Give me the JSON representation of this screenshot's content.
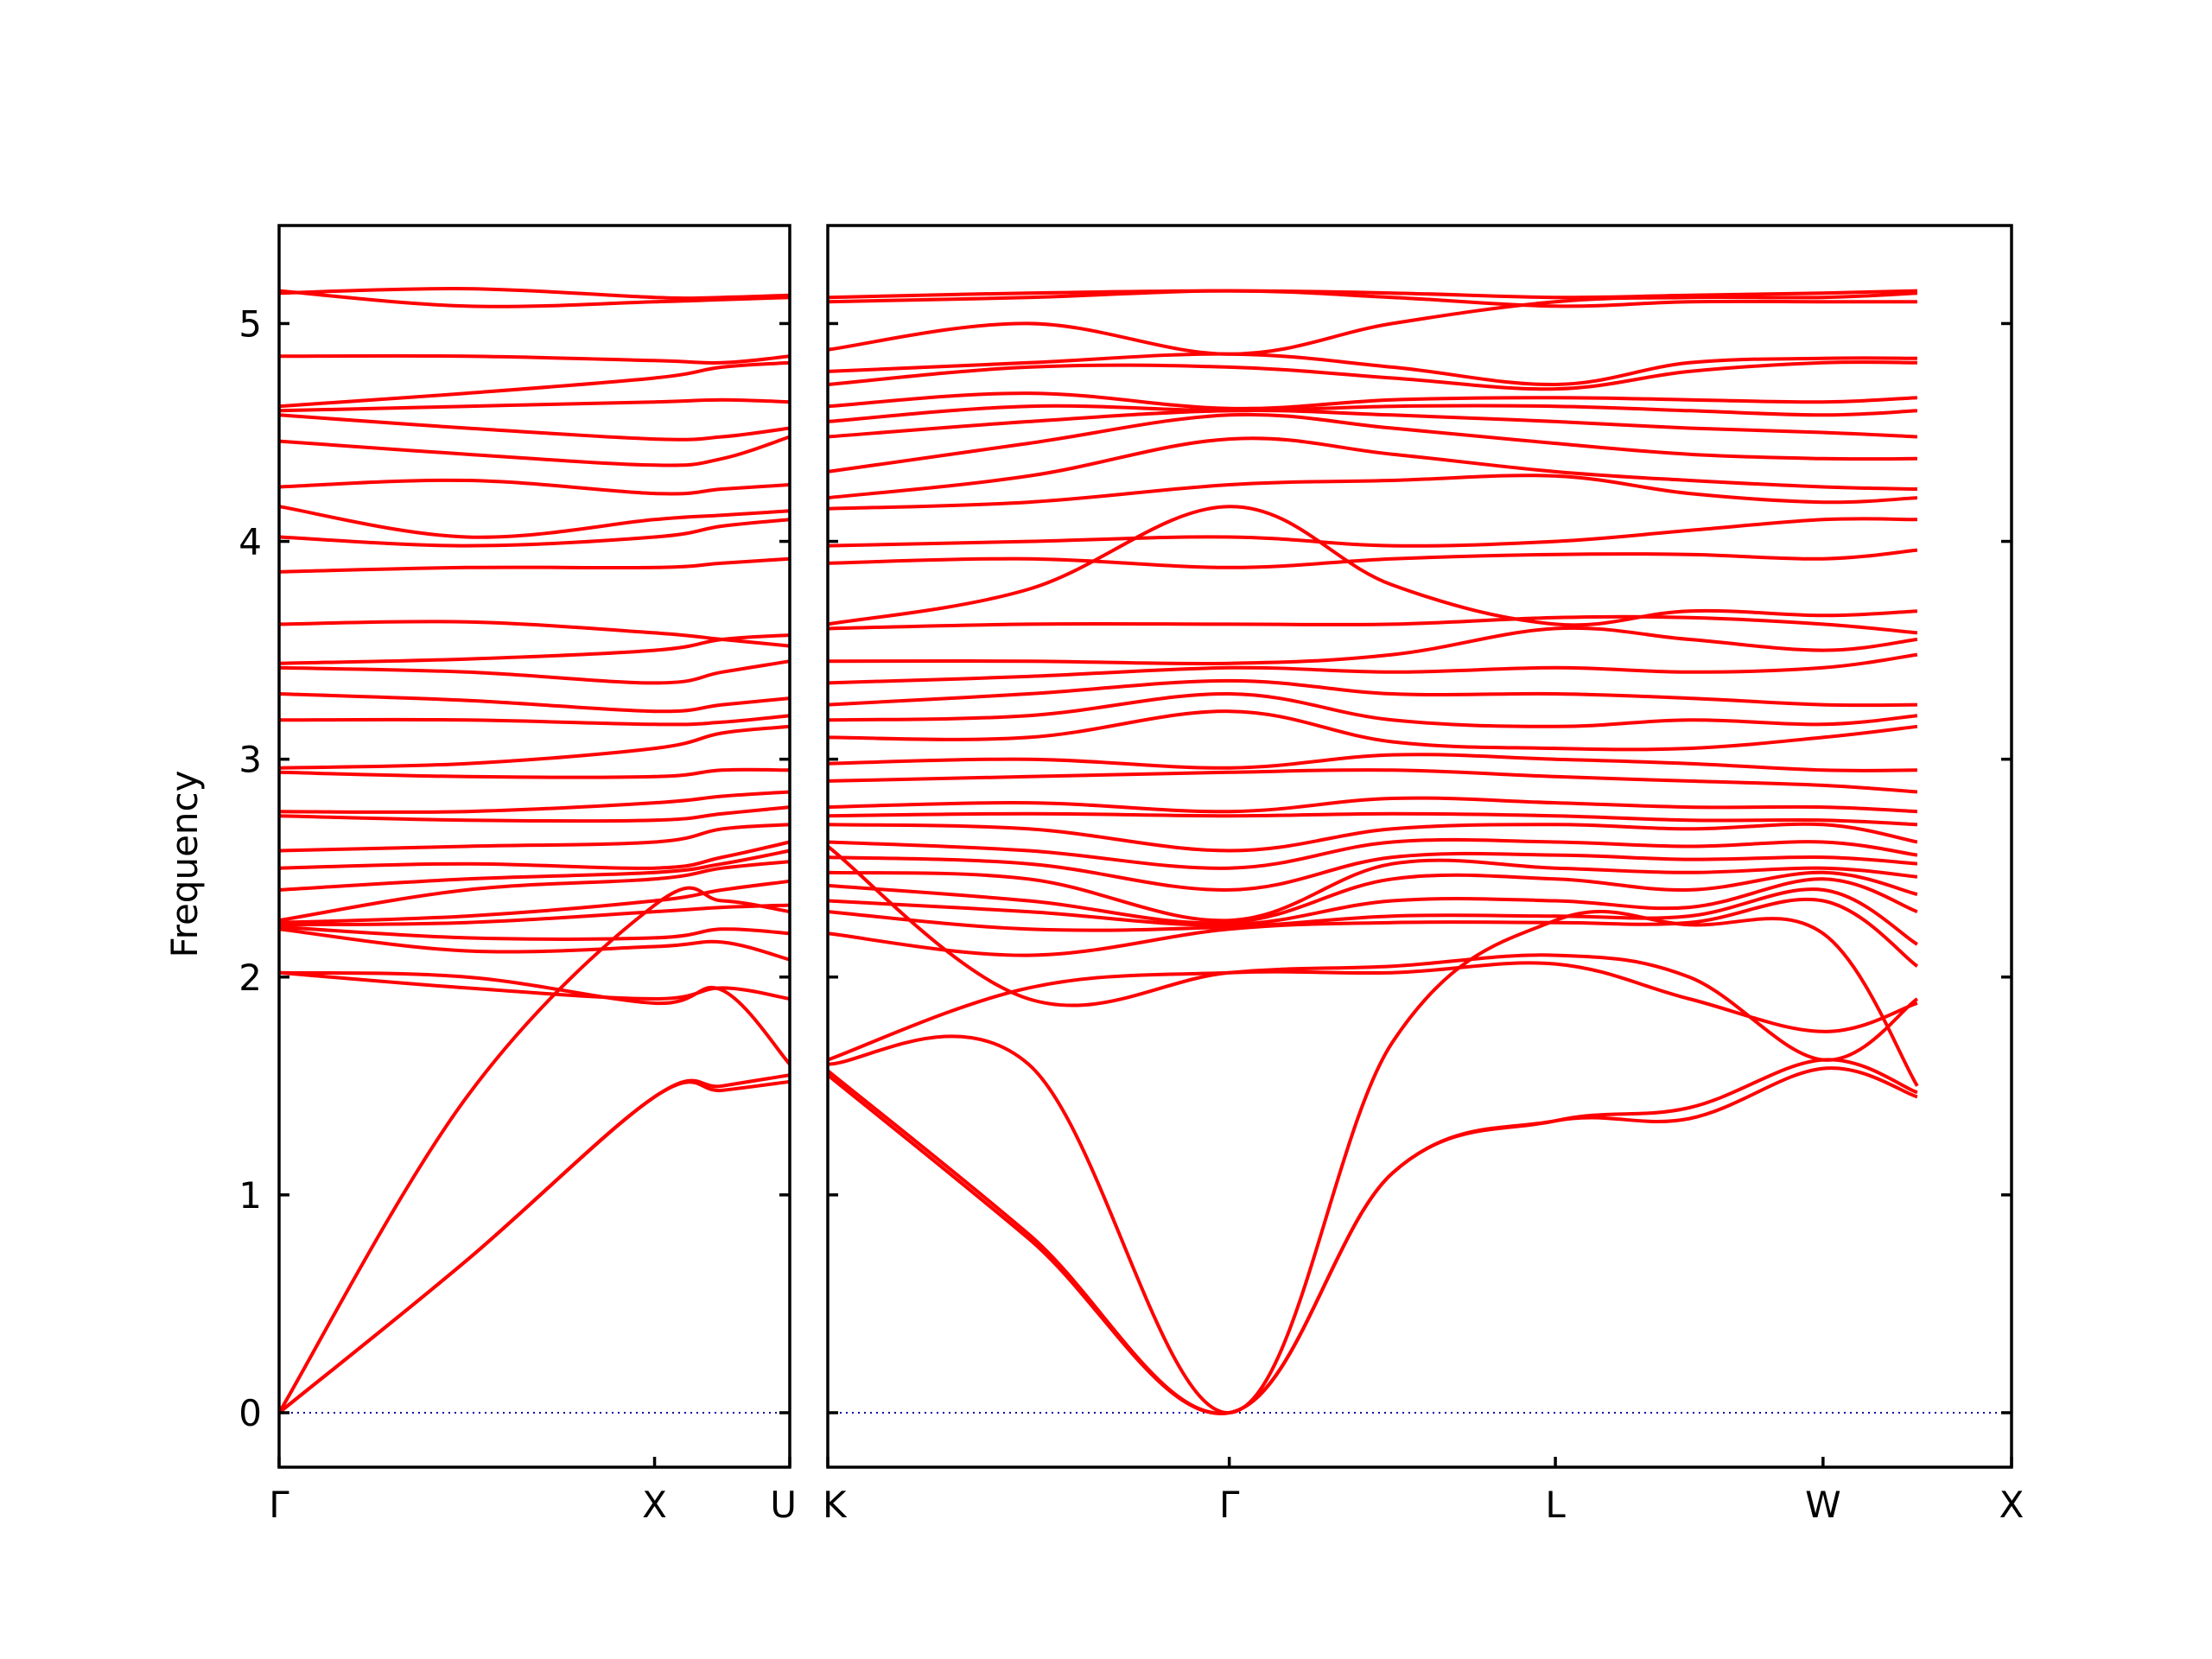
{
  "chart_data": {
    "type": "line",
    "title": "",
    "ylabel": "Frequency",
    "xlabel": "",
    "ylim": [
      -0.25,
      5.45
    ],
    "yticks": [
      0,
      1,
      2,
      3,
      4,
      5
    ],
    "grid": false,
    "panels": [
      {
        "name": "panel-left",
        "segment_positions": [
          0,
          1,
          1.36
        ],
        "x_tick_labels": [
          "Γ",
          "X",
          "U"
        ],
        "bands": [
          [
            0,
            0.7,
            1.45,
            1.48,
            1.52
          ],
          [
            0,
            0.7,
            1.45,
            1.5,
            1.55
          ],
          [
            0,
            1.45,
            2.33,
            2.35,
            2.3
          ],
          [
            2.02,
            2.0,
            1.88,
            1.94,
            1.6
          ],
          [
            2.02,
            1.95,
            1.9,
            1.95,
            1.9
          ],
          [
            2.22,
            2.12,
            2.14,
            2.16,
            2.08
          ],
          [
            2.23,
            2.18,
            2.18,
            2.22,
            2.2
          ],
          [
            2.24,
            2.25,
            2.3,
            2.32,
            2.33
          ],
          [
            2.25,
            2.28,
            2.35,
            2.4,
            2.44
          ],
          [
            2.26,
            2.4,
            2.45,
            2.5,
            2.53
          ],
          [
            2.4,
            2.45,
            2.48,
            2.52,
            2.58
          ],
          [
            2.5,
            2.52,
            2.5,
            2.55,
            2.62
          ],
          [
            2.58,
            2.6,
            2.62,
            2.68,
            2.7
          ],
          [
            2.74,
            2.72,
            2.72,
            2.75,
            2.78
          ],
          [
            2.76,
            2.76,
            2.8,
            2.83,
            2.85
          ],
          [
            2.94,
            2.92,
            2.92,
            2.95,
            2.95
          ],
          [
            2.96,
            2.98,
            3.05,
            3.12,
            3.15
          ],
          [
            3.18,
            3.18,
            3.16,
            3.17,
            3.2
          ],
          [
            3.3,
            3.27,
            3.22,
            3.25,
            3.28
          ],
          [
            3.42,
            3.4,
            3.35,
            3.4,
            3.45
          ],
          [
            3.44,
            3.46,
            3.5,
            3.55,
            3.57
          ],
          [
            3.62,
            3.63,
            3.58,
            3.55,
            3.52
          ],
          [
            3.86,
            3.88,
            3.88,
            3.9,
            3.92
          ],
          [
            4.02,
            3.98,
            4.02,
            4.07,
            4.1
          ],
          [
            4.16,
            4.02,
            4.1,
            4.12,
            4.14
          ],
          [
            4.25,
            4.28,
            4.22,
            4.24,
            4.26
          ],
          [
            4.46,
            4.4,
            4.35,
            4.38,
            4.48
          ],
          [
            4.58,
            4.52,
            4.47,
            4.48,
            4.52
          ],
          [
            4.6,
            4.62,
            4.64,
            4.65,
            4.64
          ],
          [
            4.62,
            4.68,
            4.75,
            4.8,
            4.82
          ],
          [
            4.85,
            4.85,
            4.83,
            4.82,
            4.85
          ],
          [
            5.14,
            5.16,
            5.12,
            5.12,
            5.13
          ],
          [
            5.15,
            5.08,
            5.1,
            5.11,
            5.12
          ]
        ]
      },
      {
        "name": "panel-right",
        "segment_positions": [
          0,
          1.065,
          1.93,
          2.64,
          3.14
        ],
        "x_tick_labels": [
          "K",
          "Γ",
          "L",
          "W",
          "X"
        ],
        "bands": [
          [
            1.55,
            0.8,
            0,
            1.1,
            1.34,
            1.35,
            1.58,
            1.45
          ],
          [
            1.57,
            0.82,
            0,
            1.1,
            1.34,
            1.4,
            1.62,
            1.47
          ],
          [
            1.6,
            1.6,
            0,
            1.7,
            2.26,
            2.24,
            2.2,
            1.5
          ],
          [
            1.62,
            1.95,
            2.02,
            2.02,
            2.06,
            1.9,
            1.75,
            1.88
          ],
          [
            2.6,
            1.9,
            2.02,
            2.05,
            2.1,
            2.0,
            1.62,
            1.9
          ],
          [
            2.2,
            2.1,
            2.22,
            2.25,
            2.25,
            2.25,
            2.35,
            2.05
          ],
          [
            2.3,
            2.22,
            2.23,
            2.28,
            2.28,
            2.28,
            2.4,
            2.15
          ],
          [
            2.35,
            2.3,
            2.24,
            2.35,
            2.35,
            2.32,
            2.45,
            2.3
          ],
          [
            2.42,
            2.35,
            2.25,
            2.45,
            2.45,
            2.4,
            2.48,
            2.38
          ],
          [
            2.48,
            2.45,
            2.26,
            2.52,
            2.5,
            2.48,
            2.5,
            2.46
          ],
          [
            2.55,
            2.52,
            2.4,
            2.55,
            2.56,
            2.54,
            2.55,
            2.52
          ],
          [
            2.62,
            2.58,
            2.5,
            2.62,
            2.62,
            2.6,
            2.62,
            2.56
          ],
          [
            2.7,
            2.68,
            2.58,
            2.68,
            2.7,
            2.68,
            2.7,
            2.62
          ],
          [
            2.74,
            2.75,
            2.74,
            2.75,
            2.74,
            2.72,
            2.72,
            2.7
          ],
          [
            2.78,
            2.8,
            2.76,
            2.82,
            2.8,
            2.78,
            2.78,
            2.76
          ],
          [
            2.9,
            2.92,
            2.94,
            2.95,
            2.92,
            2.9,
            2.88,
            2.85
          ],
          [
            2.98,
            3.0,
            2.96,
            3.02,
            3.0,
            2.98,
            2.95,
            2.95
          ],
          [
            3.1,
            3.1,
            3.22,
            3.08,
            3.05,
            3.05,
            3.1,
            3.15
          ],
          [
            3.18,
            3.2,
            3.3,
            3.18,
            3.15,
            3.18,
            3.16,
            3.2
          ],
          [
            3.25,
            3.3,
            3.36,
            3.3,
            3.3,
            3.28,
            3.25,
            3.25
          ],
          [
            3.35,
            3.38,
            3.42,
            3.4,
            3.42,
            3.4,
            3.42,
            3.48
          ],
          [
            3.45,
            3.45,
            3.44,
            3.48,
            3.6,
            3.55,
            3.5,
            3.55
          ],
          [
            3.6,
            3.62,
            3.62,
            3.62,
            3.65,
            3.65,
            3.62,
            3.58
          ],
          [
            3.62,
            3.78,
            4.16,
            3.8,
            3.62,
            3.68,
            3.66,
            3.68
          ],
          [
            3.9,
            3.92,
            3.88,
            3.92,
            3.94,
            3.94,
            3.92,
            3.96
          ],
          [
            3.98,
            4.0,
            4.02,
            3.98,
            4.0,
            4.05,
            4.1,
            4.1
          ],
          [
            4.15,
            4.18,
            4.26,
            4.28,
            4.3,
            4.22,
            4.18,
            4.2
          ],
          [
            4.2,
            4.3,
            4.47,
            4.4,
            4.32,
            4.28,
            4.25,
            4.24
          ],
          [
            4.32,
            4.45,
            4.58,
            4.52,
            4.45,
            4.4,
            4.38,
            4.38
          ],
          [
            4.48,
            4.55,
            4.6,
            4.58,
            4.55,
            4.52,
            4.5,
            4.48
          ],
          [
            4.55,
            4.62,
            4.6,
            4.62,
            4.62,
            4.6,
            4.58,
            4.6
          ],
          [
            4.62,
            4.68,
            4.61,
            4.65,
            4.66,
            4.65,
            4.64,
            4.66
          ],
          [
            4.72,
            4.8,
            4.8,
            4.75,
            4.7,
            4.78,
            4.82,
            4.82
          ],
          [
            4.78,
            4.82,
            4.86,
            4.8,
            4.72,
            4.82,
            4.84,
            4.84
          ],
          [
            4.88,
            5.0,
            4.86,
            5.0,
            5.1,
            5.12,
            5.12,
            5.14
          ],
          [
            5.12,
            5.14,
            5.15,
            5.14,
            5.12,
            5.13,
            5.14,
            5.15
          ],
          [
            5.1,
            5.12,
            5.15,
            5.12,
            5.08,
            5.1,
            5.1,
            5.1
          ]
        ]
      }
    ]
  }
}
